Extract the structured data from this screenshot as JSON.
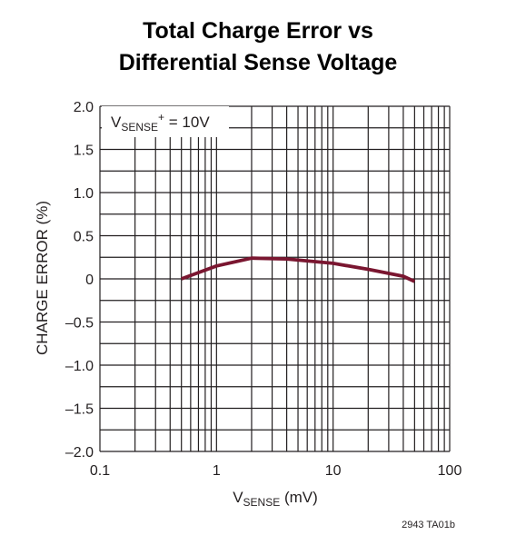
{
  "chart_data": {
    "type": "line",
    "title": [
      "Total Charge Error vs",
      "Differential Sense Voltage"
    ],
    "xlabel": {
      "main": "V",
      "sub": "SENSE",
      "unit": " (mV)"
    },
    "ylabel": "CHARGE ERROR (%)",
    "x_scale": "log",
    "xlim": [
      0.1,
      100
    ],
    "ylim": [
      -2.0,
      2.0
    ],
    "x_tick_labels": [
      "0.1",
      "1",
      "10",
      "100"
    ],
    "x_tick_values": [
      0.1,
      1,
      10,
      100
    ],
    "y_tick_labels": [
      "2.0",
      "1.5",
      "1.0",
      "0.5",
      "0",
      "–0.5",
      "–1.0",
      "–1.5",
      "–2.0"
    ],
    "y_tick_values": [
      2.0,
      1.5,
      1.0,
      0.5,
      0,
      -0.5,
      -1.0,
      -1.5,
      -2.0
    ],
    "grid": true,
    "annotation": {
      "main": "V",
      "sub": "SENSE",
      "sup": "+",
      "rest": " = 10V"
    },
    "series": [
      {
        "color": "#7a1630",
        "x": [
          0.5,
          1,
          2,
          4,
          10,
          20,
          40,
          50
        ],
        "y": [
          0.0,
          0.15,
          0.24,
          0.23,
          0.18,
          0.11,
          0.03,
          -0.03
        ]
      }
    ],
    "figure_id": "2943 TA01b"
  }
}
